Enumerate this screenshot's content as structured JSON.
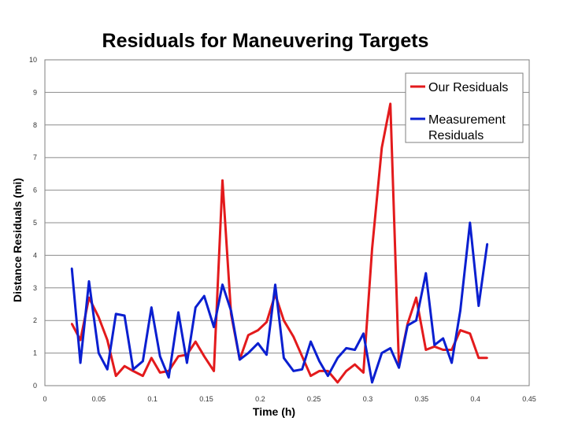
{
  "chart_data": {
    "type": "line",
    "title": "Residuals for Maneuvering Targets",
    "xlabel": "Time (h)",
    "ylabel": "Distance Residuals (mi)",
    "xlim": [
      0,
      0.45
    ],
    "ylim": [
      0,
      10
    ],
    "xticks": [
      "0",
      "0.05",
      "0.1",
      "0.15",
      "0.2",
      "0.25",
      "0.3",
      "0.35",
      "0.4",
      "0.45"
    ],
    "yticks": [
      "0",
      "1",
      "2",
      "3",
      "4",
      "5",
      "6",
      "7",
      "8",
      "9",
      "10"
    ],
    "grid": "horizontal",
    "legend_position": "top-right",
    "series": [
      {
        "name": "Our Residuals",
        "color": "#e31a1c",
        "x": [
          0.025,
          0.033,
          0.041,
          0.05,
          0.058,
          0.066,
          0.074,
          0.082,
          0.091,
          0.099,
          0.107,
          0.115,
          0.124,
          0.132,
          0.14,
          0.148,
          0.157,
          0.165,
          0.173,
          0.181,
          0.189,
          0.198,
          0.206,
          0.214,
          0.222,
          0.231,
          0.239,
          0.247,
          0.255,
          0.263,
          0.272,
          0.28,
          0.288,
          0.296,
          0.304,
          0.313,
          0.321,
          0.329,
          0.337,
          0.345,
          0.354,
          0.362,
          0.37,
          0.378,
          0.386,
          0.395,
          0.403,
          0.411
        ],
        "values": [
          1.9,
          1.4,
          2.7,
          2.1,
          1.4,
          0.3,
          0.6,
          0.45,
          0.3,
          0.85,
          0.4,
          0.45,
          0.9,
          0.95,
          1.35,
          0.9,
          0.45,
          6.3,
          2.2,
          0.8,
          1.55,
          1.7,
          1.95,
          2.8,
          2.0,
          1.5,
          0.9,
          0.3,
          0.45,
          0.45,
          0.1,
          0.45,
          0.65,
          0.4,
          4.2,
          7.3,
          8.65,
          0.6,
          1.9,
          2.7,
          1.1,
          1.2,
          1.1,
          1.1,
          1.7,
          1.6,
          0.85,
          0.85
        ]
      },
      {
        "name": "Measurement Residuals",
        "color": "#0a1fd0",
        "x": [
          0.025,
          0.033,
          0.041,
          0.05,
          0.058,
          0.066,
          0.074,
          0.082,
          0.091,
          0.099,
          0.107,
          0.115,
          0.124,
          0.132,
          0.14,
          0.148,
          0.157,
          0.165,
          0.173,
          0.181,
          0.189,
          0.198,
          0.206,
          0.214,
          0.222,
          0.231,
          0.239,
          0.247,
          0.255,
          0.263,
          0.272,
          0.28,
          0.288,
          0.296,
          0.304,
          0.313,
          0.321,
          0.329,
          0.337,
          0.345,
          0.354,
          0.362,
          0.37,
          0.378,
          0.386,
          0.395,
          0.403,
          0.411
        ],
        "values": [
          3.6,
          0.7,
          3.2,
          1.0,
          0.5,
          2.2,
          2.15,
          0.5,
          0.75,
          2.4,
          0.9,
          0.25,
          2.25,
          0.7,
          2.4,
          2.75,
          1.8,
          3.1,
          2.3,
          0.8,
          1.0,
          1.3,
          0.95,
          3.1,
          0.85,
          0.45,
          0.5,
          1.35,
          0.75,
          0.3,
          0.85,
          1.15,
          1.1,
          1.6,
          0.1,
          1.0,
          1.15,
          0.55,
          1.85,
          2.0,
          3.45,
          1.25,
          1.45,
          0.7,
          2.3,
          5.0,
          2.45,
          4.35
        ]
      }
    ]
  }
}
